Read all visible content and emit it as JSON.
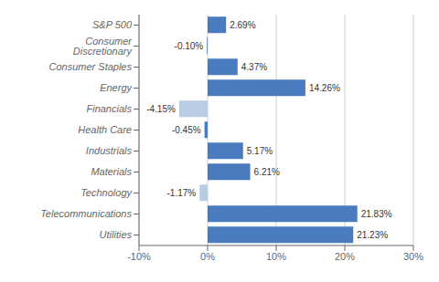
{
  "chart_data": {
    "type": "bar",
    "orientation": "horizontal",
    "categories": [
      "S&P 500",
      "Consumer Discretionary",
      "Consumer Staples",
      "Energy",
      "Financials",
      "Health Care",
      "Industrials",
      "Materials",
      "Technology",
      "Telecommunications",
      "Utilities"
    ],
    "values": [
      2.69,
      -0.1,
      4.37,
      14.26,
      -4.15,
      -0.45,
      5.17,
      6.21,
      -1.17,
      21.83,
      21.23
    ],
    "value_labels": [
      "2.69%",
      "-0.10%",
      "4.37%",
      "14.26%",
      "-4.15%",
      "-0.45%",
      "5.17%",
      "6.21%",
      "-1.17%",
      "21.83%",
      "21.23%"
    ],
    "colors": [
      "#4a7bbf",
      "#4a7bbf",
      "#4a7bbf",
      "#4a7bbf",
      "#b8cce4",
      "#4a7bbf",
      "#4a7bbf",
      "#4a7bbf",
      "#b8cce4",
      "#4a7bbf",
      "#4a7bbf"
    ],
    "xlim": [
      -10,
      30
    ],
    "xticks": [
      {
        "value": -10,
        "label": "-10%"
      },
      {
        "value": 0,
        "label": "0%"
      },
      {
        "value": 10,
        "label": "10%"
      },
      {
        "value": 20,
        "label": "20%"
      },
      {
        "value": 30,
        "label": "30%"
      }
    ],
    "grid": true,
    "data_labels": true
  }
}
